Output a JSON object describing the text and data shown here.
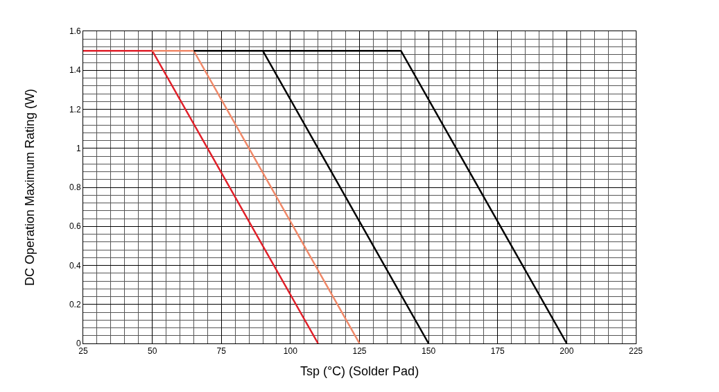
{
  "chart_data": {
    "type": "line",
    "xlabel": "Tsp (°C) (Solder Pad)",
    "ylabel": "DC Operation Maximum Rating (W)",
    "series": [
      {
        "color": "#e0202a",
        "x": [
          25,
          50,
          110
        ],
        "values": [
          1.5,
          1.5,
          0
        ]
      },
      {
        "color": "#f08868",
        "x": [
          50,
          65,
          125
        ],
        "values": [
          1.5,
          1.5,
          0
        ]
      },
      {
        "color": "#000000",
        "x": [
          65,
          90,
          150
        ],
        "values": [
          1.5,
          1.5,
          0
        ]
      },
      {
        "color": "#000000",
        "x": [
          90,
          140,
          200
        ],
        "values": [
          1.5,
          1.5,
          0
        ]
      }
    ],
    "xlim": [
      25,
      225
    ],
    "xticks": [
      25,
      50,
      75,
      100,
      125,
      150,
      175,
      200,
      225
    ],
    "ylim": [
      0,
      1.6
    ],
    "yticks": [
      0,
      0.2,
      0.4,
      0.6,
      0.8,
      1,
      1.2,
      1.4,
      1.6
    ],
    "grid": true,
    "marker": "none",
    "line_style": "solid"
  }
}
